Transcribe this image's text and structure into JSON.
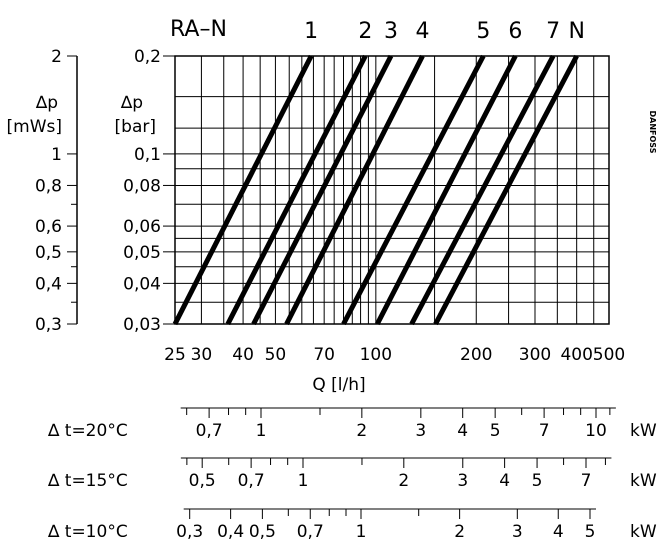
{
  "chart_data": {
    "type": "line",
    "title": "RA–N",
    "brand": "DANFOSS",
    "xscale": "log",
    "yscale": "log",
    "xlabel": "Q  [l/h]",
    "xlim": [
      25,
      500
    ],
    "ylim": [
      0.03,
      0.2
    ],
    "x_tick_labels": [
      "25",
      "30",
      "40",
      "50",
      "70",
      "100",
      "200",
      "300",
      "400",
      "500"
    ],
    "x_ticks": [
      25,
      30,
      40,
      50,
      70,
      100,
      200,
      300,
      400,
      500
    ],
    "y_axis_bar": {
      "label_line1": "∆p",
      "label_line2": "[bar]",
      "tick_labels": [
        "0,2",
        "0,1",
        "0,08",
        "0,06",
        "0,05",
        "0,04",
        "0,03"
      ],
      "ticks": [
        0.2,
        0.1,
        0.08,
        0.06,
        0.05,
        0.04,
        0.03
      ]
    },
    "y_axis_mws": {
      "label_line1": "∆p",
      "label_line2": "[mWs]",
      "tick_labels": [
        "2",
        "1",
        "0,8",
        "0,6",
        "0,5",
        "0,4",
        "0,3"
      ],
      "ticks": [
        2,
        1,
        0.8,
        0.6,
        0.5,
        0.4,
        0.3
      ]
    },
    "grid": true,
    "series": [
      {
        "name": "1",
        "x": [
          25,
          64
        ],
        "y": [
          0.03,
          0.2
        ]
      },
      {
        "name": "2",
        "x": [
          36,
          93
        ],
        "y": [
          0.03,
          0.2
        ]
      },
      {
        "name": "3",
        "x": [
          43,
          111
        ],
        "y": [
          0.03,
          0.2
        ]
      },
      {
        "name": "4",
        "x": [
          54,
          138
        ],
        "y": [
          0.03,
          0.2
        ]
      },
      {
        "name": "5",
        "x": [
          80,
          210
        ],
        "y": [
          0.03,
          0.2
        ]
      },
      {
        "name": "6",
        "x": [
          101,
          262
        ],
        "y": [
          0.03,
          0.2
        ]
      },
      {
        "name": "7",
        "x": [
          128,
          340
        ],
        "y": [
          0.03,
          0.2
        ]
      },
      {
        "name": "N",
        "x": [
          151,
          400
        ],
        "y": [
          0.03,
          0.2
        ]
      }
    ],
    "kw_scales": [
      {
        "label": "∆ t=20°C",
        "unit": "kW",
        "tick_labels": [
          "0,7",
          "1",
          "2",
          "3",
          "4",
          "5",
          "7",
          "10"
        ],
        "ticks": [
          0.7,
          1,
          2,
          3,
          4,
          5,
          7,
          10
        ],
        "minor": [
          0.6,
          0.8,
          0.9,
          1.5,
          6,
          8,
          9,
          11
        ]
      },
      {
        "label": "∆ t=15°C",
        "unit": "kW",
        "tick_labels": [
          "0,5",
          "0,7",
          "1",
          "2",
          "3",
          "4",
          "5",
          "7"
        ],
        "ticks": [
          0.5,
          0.7,
          1,
          2,
          3,
          4,
          5,
          7
        ],
        "minor": [
          0.45,
          0.6,
          0.8,
          0.9,
          1.5,
          6,
          8
        ]
      },
      {
        "label": "∆ t=10°C",
        "unit": "kW",
        "tick_labels": [
          "0,3",
          "0,4",
          "0,5",
          "0,7",
          "1",
          "2",
          "3",
          "4",
          "5"
        ],
        "ticks": [
          0.3,
          0.4,
          0.5,
          0.7,
          1,
          2,
          3,
          4,
          5
        ],
        "minor": [
          0.6,
          0.8,
          0.9,
          1.5
        ]
      }
    ]
  }
}
